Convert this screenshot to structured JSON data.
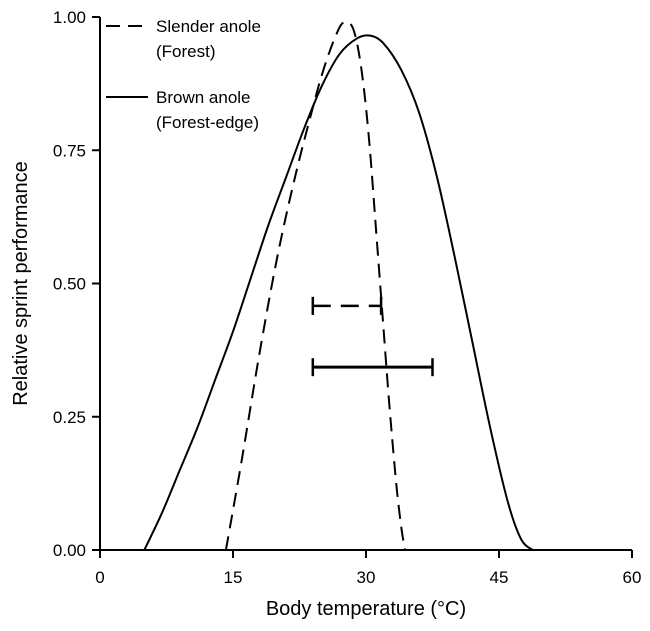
{
  "chart_data": {
    "type": "line",
    "title": "",
    "xlabel": "Body temperature (°C)",
    "ylabel": "Relative sprint performance",
    "xlim": [
      0,
      60
    ],
    "ylim": [
      0,
      1
    ],
    "x_ticks": [
      0,
      15,
      30,
      45,
      60
    ],
    "x_tick_labels": [
      "0",
      "15",
      "30",
      "45",
      "60"
    ],
    "y_ticks": [
      0,
      0.25,
      0.5,
      0.75,
      1.0
    ],
    "y_tick_labels": [
      "0.00",
      "0.25",
      "0.50",
      "0.75",
      "1.00"
    ],
    "grid": false,
    "legend_position": "top-left",
    "series": [
      {
        "name": "Slender anole (Forest)",
        "legend_lines": [
          "Slender anole",
          "(Forest)"
        ],
        "line_style": "dashed",
        "x": [
          14.2,
          16,
          18,
          20,
          22,
          24,
          25,
          26,
          27,
          27.5,
          28,
          28.5,
          29,
          29.5,
          30,
          30.5,
          31,
          31.5,
          32,
          32.5,
          33,
          33.5,
          34,
          34.4
        ],
        "y": [
          0.0,
          0.17,
          0.37,
          0.55,
          0.7,
          0.83,
          0.89,
          0.94,
          0.98,
          0.99,
          0.99,
          0.98,
          0.95,
          0.9,
          0.83,
          0.74,
          0.63,
          0.52,
          0.41,
          0.3,
          0.2,
          0.11,
          0.04,
          0.0
        ]
      },
      {
        "name": "Brown anole (Forest-edge)",
        "legend_lines": [
          "Brown anole",
          "(Forest-edge)"
        ],
        "line_style": "solid",
        "x": [
          5,
          7,
          9,
          11,
          13,
          15,
          17,
          19,
          21,
          23,
          25,
          27,
          29,
          30.5,
          32,
          34,
          36,
          38,
          40,
          42,
          44,
          46,
          47.5,
          48.8
        ],
        "y": [
          0.0,
          0.07,
          0.15,
          0.23,
          0.32,
          0.41,
          0.51,
          0.61,
          0.7,
          0.79,
          0.87,
          0.93,
          0.96,
          0.965,
          0.95,
          0.9,
          0.82,
          0.7,
          0.55,
          0.39,
          0.23,
          0.09,
          0.02,
          0.0
        ]
      }
    ],
    "range_bars": [
      {
        "series": "Slender anole (Forest)",
        "line_style": "dashed",
        "x_min": 24,
        "x_max": 31.7,
        "y": 0.458
      },
      {
        "series": "Brown anole (Forest-edge)",
        "line_style": "solid",
        "x_min": 24,
        "x_max": 37.5,
        "y": 0.343
      }
    ]
  }
}
